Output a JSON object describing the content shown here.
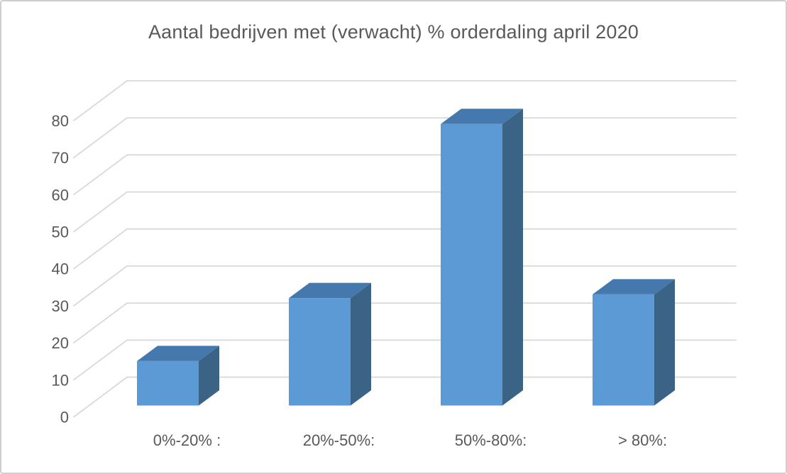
{
  "chart_data": {
    "type": "bar",
    "variant": "3d-column",
    "title": "Aantal bedrijven met (verwacht) % orderdaling april 2020",
    "categories": [
      "0%-20% :",
      "20%-50%:",
      "50%-80%:",
      "> 80%:"
    ],
    "values": [
      12,
      29,
      76,
      30
    ],
    "xlabel": "",
    "ylabel": "",
    "ylim": [
      0,
      80
    ],
    "yticks": [
      0,
      10,
      20,
      30,
      40,
      50,
      60,
      70,
      80
    ],
    "grid": true,
    "legend": false,
    "colors": {
      "bar_front": "#5B9AD5",
      "bar_top": "#4579AD",
      "bar_side": "#3B6386",
      "gridline": "#D9D9D9",
      "text": "#595959",
      "frame_border": "#D0CECE",
      "background": "#FFFFFF"
    }
  }
}
